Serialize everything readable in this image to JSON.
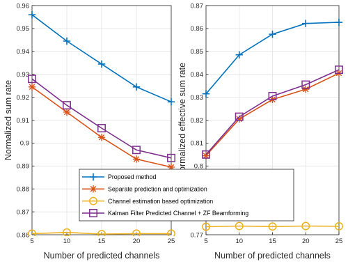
{
  "chart_data": [
    {
      "type": "line",
      "title": "",
      "xlabel": "Number of predicted channels",
      "ylabel": "Normalized sum rate",
      "x": [
        5,
        10,
        15,
        20,
        25
      ],
      "xlim": [
        5,
        25
      ],
      "ylim": [
        0.86,
        0.96
      ],
      "xticks": [
        "5",
        "10",
        "15",
        "20",
        "25"
      ],
      "yticks": [
        "0.86",
        "0.87",
        "0.88",
        "0.89",
        "0.9",
        "0.91",
        "0.92",
        "0.93",
        "0.94",
        "0.95",
        "0.96"
      ],
      "grid": true,
      "series": [
        {
          "name": "Proposed method",
          "values": [
            0.956,
            0.9445,
            0.9345,
            0.9245,
            0.918
          ]
        },
        {
          "name": "Separate prediction and optimization",
          "values": [
            0.9245,
            0.9135,
            0.9025,
            0.893,
            0.8895
          ]
        },
        {
          "name": "Channel estimation based optimization",
          "values": [
            0.8605,
            0.861,
            0.8603,
            0.8605,
            0.8605
          ]
        },
        {
          "name": "Kalman Filter Predicted Channel + ZF Beamforming",
          "values": [
            0.928,
            0.9165,
            0.9065,
            0.897,
            0.8935
          ]
        }
      ]
    },
    {
      "type": "line",
      "title": "",
      "xlabel": "Number of predicted channels",
      "ylabel": "Normalized effective sum rate",
      "x": [
        5,
        10,
        15,
        20,
        25
      ],
      "xlim": [
        5,
        25
      ],
      "ylim": [
        0.77,
        0.87
      ],
      "xticks": [
        "5",
        "10",
        "15",
        "20",
        "25"
      ],
      "yticks": [
        "0.77",
        "0.8",
        "0.81",
        "0.82",
        "0.83",
        "0.84",
        "0.85",
        "0.86",
        "0.87"
      ],
      "grid": true,
      "series": [
        {
          "name": "Proposed method",
          "values": [
            0.8315,
            0.8485,
            0.8575,
            0.8622,
            0.8627
          ]
        },
        {
          "name": "Separate prediction and optimization",
          "values": [
            0.8045,
            0.8205,
            0.829,
            0.8335,
            0.8405
          ]
        },
        {
          "name": "Channel estimation based optimization",
          "values": [
            0.7735,
            0.7738,
            0.7736,
            0.7738,
            0.7737
          ]
        },
        {
          "name": "Kalman Filter Predicted Channel + ZF Beamforming",
          "values": [
            0.805,
            0.8215,
            0.8305,
            0.8355,
            0.842
          ]
        }
      ]
    }
  ],
  "legend": {
    "placement": "bottom-center",
    "entries": [
      "Proposed method",
      "Separate prediction and optimization",
      "Channel estimation based optimization",
      "Kalman Filter Predicted Channel + ZF Beamforming"
    ]
  },
  "colors": {
    "Proposed method": "#0072bd",
    "Separate prediction and optimization": "#d95319",
    "Channel estimation based optimization": "#edb120",
    "Kalman Filter Predicted Channel + ZF Beamforming": "#7e2f8e"
  },
  "markers": {
    "Proposed method": "plus",
    "Separate prediction and optimization": "asterisk",
    "Channel estimation based optimization": "circle",
    "Kalman Filter Predicted Channel + ZF Beamforming": "square"
  }
}
